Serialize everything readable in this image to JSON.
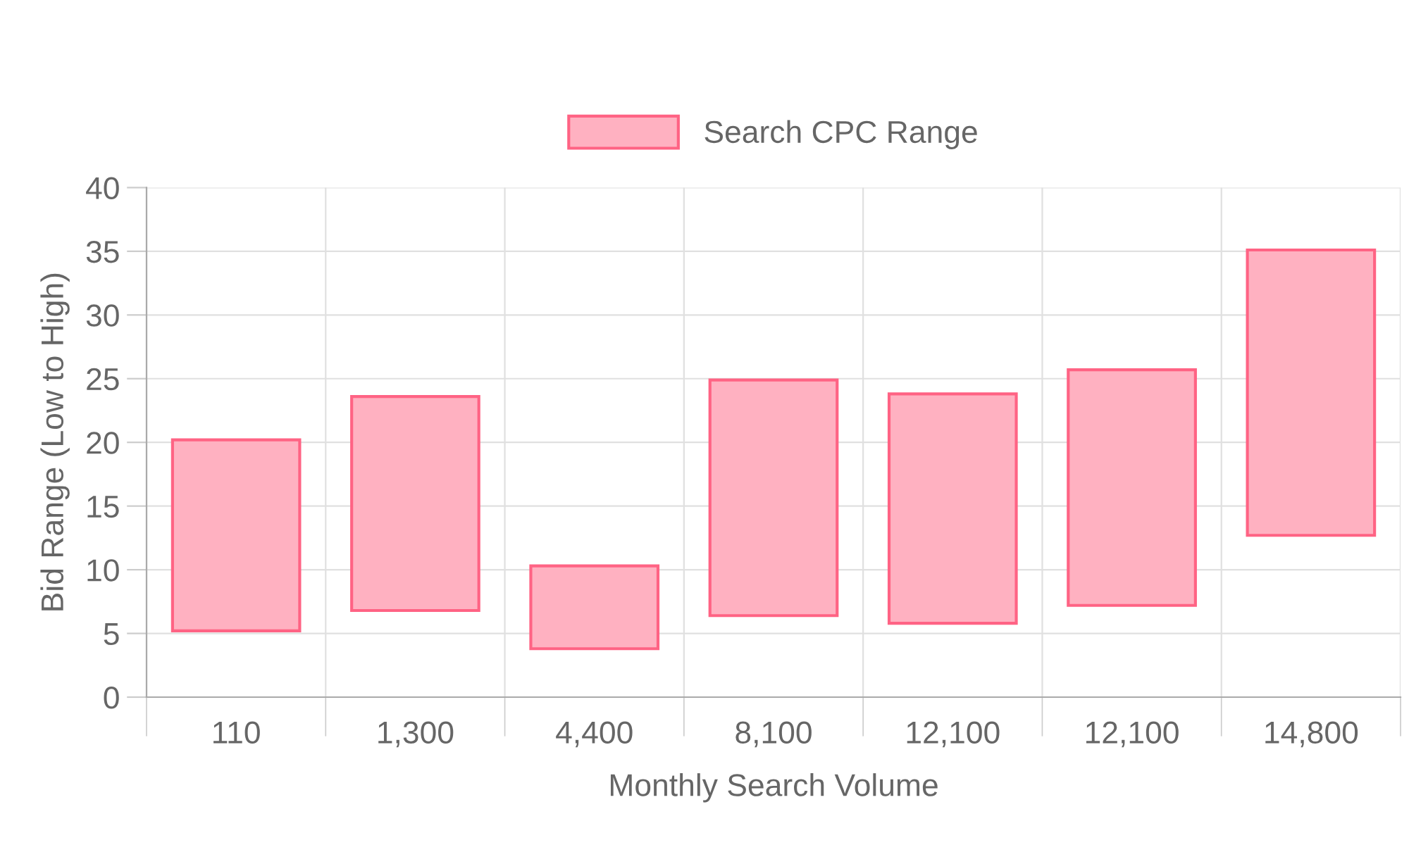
{
  "chart_data": {
    "type": "bar",
    "xlabel": "Monthly Search Volume",
    "ylabel": "Bid Range (Low to High)",
    "categories": [
      "110",
      "1,300",
      "4,400",
      "8,100",
      "12,100",
      "12,100",
      "14,800"
    ],
    "series": [
      {
        "name": "Search CPC Range",
        "color": "#ffb1c1",
        "base": [
          5.2,
          6.8,
          3.8,
          6.4,
          5.8,
          7.2,
          12.7
        ],
        "values": [
          15.0,
          16.8,
          6.5,
          18.5,
          18.0,
          18.5,
          22.4
        ]
      }
    ],
    "ylim": [
      0,
      40
    ],
    "yticks": [
      0,
      5,
      10,
      15,
      20,
      25,
      30,
      35,
      40
    ],
    "grid": true,
    "legend": "top"
  }
}
